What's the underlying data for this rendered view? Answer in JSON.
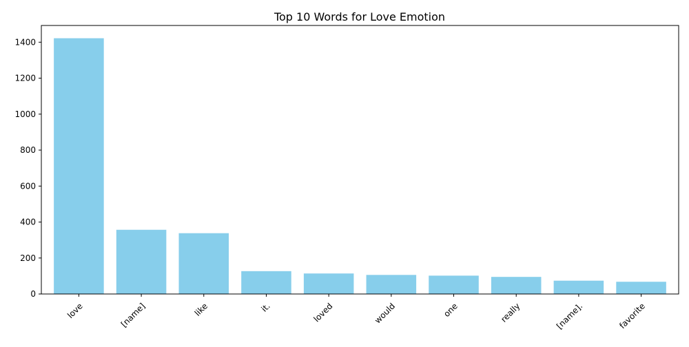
{
  "chart_data": {
    "type": "bar",
    "title": "Top 10 Words for Love Emotion",
    "xlabel": "",
    "ylabel": "",
    "categories": [
      "love",
      "[name]",
      "like",
      "it.",
      "loved",
      "would",
      "one",
      "really",
      "[name].",
      "favorite"
    ],
    "values": [
      1422,
      357,
      338,
      127,
      114,
      106,
      102,
      95,
      74,
      68
    ],
    "ylim": [
      0,
      1493
    ],
    "yticks": [
      0,
      200,
      400,
      600,
      800,
      1000,
      1200,
      1400
    ],
    "grid": false,
    "legend": "none",
    "bar_color": "#87ceeb"
  }
}
